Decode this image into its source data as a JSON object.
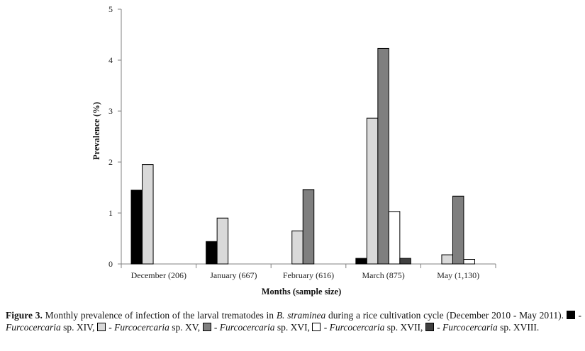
{
  "chart_data": {
    "type": "bar",
    "title": "",
    "xlabel": "Months (sample size)",
    "ylabel": "Prevalence (%)",
    "ylim": [
      0,
      5
    ],
    "yticks": [
      "0",
      "1",
      "2",
      "3",
      "4",
      "5"
    ],
    "grid": false,
    "categories": [
      "December (206)",
      "January (667)",
      "February (616)",
      "March (875)",
      "May (1,130)"
    ],
    "series": [
      {
        "name": "Furcocercaria sp. XIV",
        "color": "#000000",
        "values": [
          1.45,
          0.44,
          0,
          0.11,
          0
        ]
      },
      {
        "name": "Furcocercaria sp. XV",
        "color": "#d9d9d9",
        "values": [
          1.95,
          0.9,
          0.65,
          2.86,
          0.18
        ]
      },
      {
        "name": "Furcocercaria sp. XVI",
        "color": "#7f7f7f",
        "values": [
          0,
          0,
          1.46,
          4.23,
          1.33
        ]
      },
      {
        "name": "Furcocercaria sp. XVII",
        "color": "#ffffff",
        "values": [
          0,
          0,
          0,
          1.03,
          0.09
        ]
      },
      {
        "name": "Furcocercaria sp. XVIII",
        "color": "#404040",
        "values": [
          0,
          0,
          0,
          0.11,
          0
        ]
      }
    ]
  },
  "caption": {
    "label": "Figure 3.",
    "text1": " Monthly prevalence of infection of the larval trematodes in ",
    "species": "B. straminea",
    "text2": " during a rice cultivation cycle (December 2010 - May 2011). ",
    "dash": " - ",
    "genus": "Furcocercaria",
    "sp_xiv": " sp. XIV, ",
    "sp_xv": " sp. XV, ",
    "sp_xvi": " sp. XVI, ",
    "sp_xvii": " sp. XVII, ",
    "sp_xviii": " sp. XVIII."
  }
}
